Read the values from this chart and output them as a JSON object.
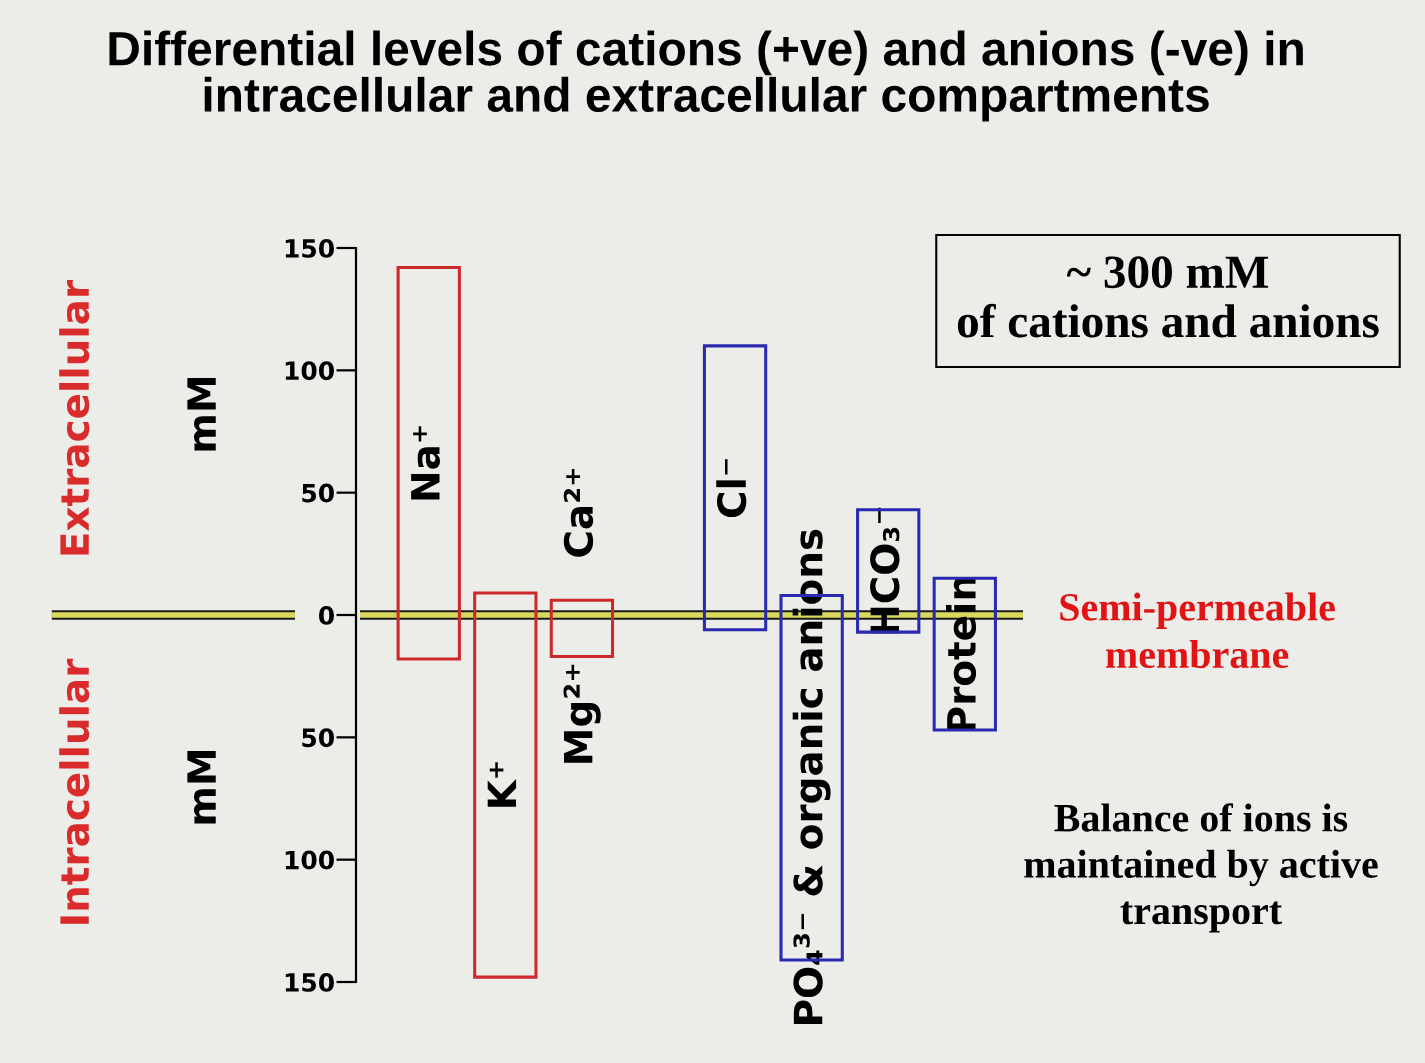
{
  "chart_data": {
    "type": "bar",
    "title": "Differential levels of cations (+ve) and anions (-ve) in\nintracellular and extracellular compartments",
    "categories": [
      "Na⁺",
      "K⁺",
      "Ca²⁺",
      null,
      "Cl⁻",
      "PO₄³⁻ & organic anions",
      "HCO₃⁻",
      "Protein"
    ],
    "series": [
      {
        "color": "#cc2a2a",
        "values": [
          160,
          157,
          23,
          null,
          null,
          null,
          null,
          null
        ],
        "base": [
          -18,
          -148,
          -17,
          null,
          null,
          null,
          null,
          null
        ]
      },
      {
        "color": "#2a2ab0",
        "values": [
          null,
          null,
          null,
          null,
          116,
          149,
          50,
          62
        ],
        "base": [
          null,
          null,
          null,
          null,
          -6,
          -141,
          -7,
          -47
        ]
      }
    ],
    "ylim": [
      -150,
      150
    ],
    "yticks": [
      {
        "value": -150,
        "label": "150"
      },
      {
        "value": -100,
        "label": "100"
      },
      {
        "value": -50,
        "label": "50"
      },
      0,
      50,
      100,
      150
    ],
    "ref_lines": [
      {
        "axis": "y",
        "value": 0,
        "label": "Semi-permeable\nmembrane",
        "color": "#d9d95c"
      }
    ],
    "annotations": [
      "Extracellular",
      "mM",
      "Intracellular",
      "mM",
      "~ 300 mM\nof cations and anions",
      "Balance of ions is\nmaintained by active\ntransport",
      {
        "text": "Mg²⁺",
        "x": "Ca²⁺",
        "y": -17
      }
    ]
  }
}
